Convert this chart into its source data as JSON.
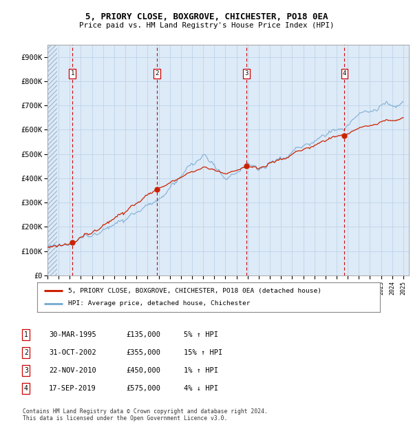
{
  "title1": "5, PRIORY CLOSE, BOXGROVE, CHICHESTER, PO18 0EA",
  "title2": "Price paid vs. HM Land Registry's House Price Index (HPI)",
  "ylim": [
    0,
    950000
  ],
  "ytick_values": [
    0,
    100000,
    200000,
    300000,
    400000,
    500000,
    600000,
    700000,
    800000,
    900000
  ],
  "ytick_labels": [
    "£0",
    "£100K",
    "£200K",
    "£300K",
    "£400K",
    "£500K",
    "£600K",
    "£700K",
    "£800K",
    "£900K"
  ],
  "hpi_color": "#7aadd4",
  "price_color": "#cc2200",
  "vline_color": "#cc0000",
  "grid_color": "#b8cfe8",
  "background_color": "#ddeaf7",
  "legend_label_price": "5, PRIORY CLOSE, BOXGROVE, CHICHESTER, PO18 0EA (detached house)",
  "legend_label_hpi": "HPI: Average price, detached house, Chichester",
  "sales": [
    {
      "num": 1,
      "date": "30-MAR-1995",
      "price": 135000,
      "pct": "5%",
      "dir": "↑",
      "year": 1995.25
    },
    {
      "num": 2,
      "date": "31-OCT-2002",
      "price": 355000,
      "pct": "15%",
      "dir": "↑",
      "year": 2002.83
    },
    {
      "num": 3,
      "date": "22-NOV-2010",
      "price": 450000,
      "pct": "1%",
      "dir": "↑",
      "year": 2010.89
    },
    {
      "num": 4,
      "date": "17-SEP-2019",
      "price": 575000,
      "pct": "4%",
      "dir": "↓",
      "year": 2019.71
    }
  ],
  "footer1": "Contains HM Land Registry data © Crown copyright and database right 2024.",
  "footer2": "This data is licensed under the Open Government Licence v3.0.",
  "x_start_year": 1993,
  "x_end_year": 2025
}
